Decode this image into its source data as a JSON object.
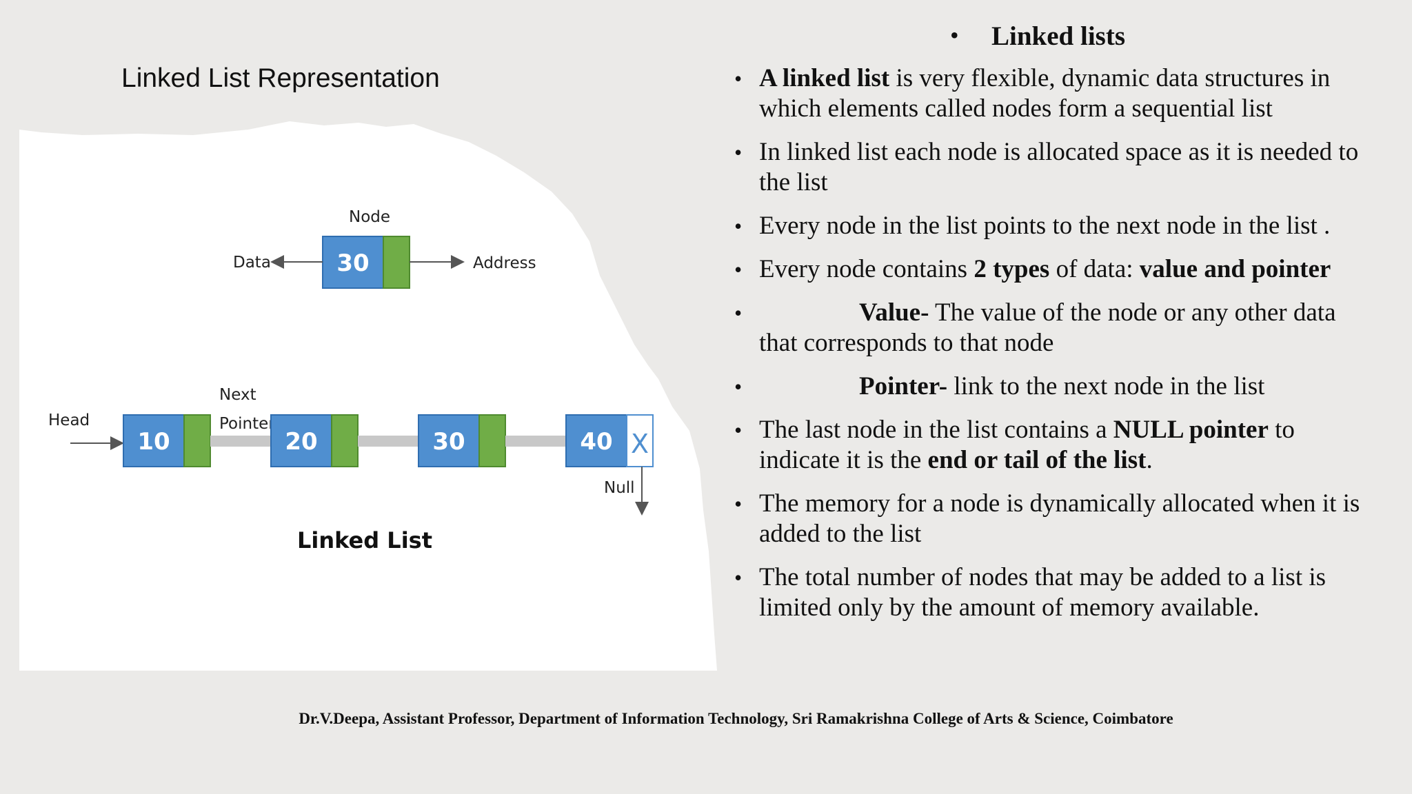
{
  "diagram": {
    "title": "Linked List Representation",
    "node_label": "Node",
    "node_value": "30",
    "data_label": "Data",
    "address_label": "Address",
    "head_label": "Head",
    "next_label": "Next",
    "pointer_label": "Pointer",
    "list_values": [
      "10",
      "20",
      "30",
      "40"
    ],
    "null_mark": "X",
    "null_label": "Null",
    "caption": "Linked List",
    "colors": {
      "value_box": "#4f8fd0",
      "pointer_box": "#70ad47",
      "arrow": "#c8c8c8"
    }
  },
  "heading": "Linked lists",
  "bullets": {
    "b1": {
      "bold": "A linked list",
      "rest": " is very flexible, dynamic data structures in which elements called nodes form  a sequential list"
    },
    "b2": {
      "text": "In linked list each node is allocated space as it is needed to the list"
    },
    "b3": {
      "text": "Every node in the list points to the next node in the list ."
    },
    "b4": {
      "pre": "Every node contains ",
      "bold1": "2 types",
      "mid": " of data: ",
      "bold2": "value and pointer"
    },
    "b5": {
      "bold": "Value-",
      "rest": " The value of the node or any other data that corresponds to that node"
    },
    "b6": {
      "bold": "Pointer-",
      "rest": " link to the next node in the list"
    },
    "b7": {
      "pre": "The last node in the list contains a ",
      "bold1": "NULL pointer",
      "mid": " to indicate it is the ",
      "bold2": "end or tail of the list",
      "post": "."
    },
    "b8": {
      "text": "The memory for a node is dynamically allocated when it is added to the list"
    },
    "b9": {
      "text": "The total  number of nodes that may be added to a list is limited only by the amount of memory available."
    }
  },
  "footer": "Dr.V.Deepa, Assistant Professor, Department of Information Technology, Sri Ramakrishna College of Arts & Science, Coimbatore"
}
